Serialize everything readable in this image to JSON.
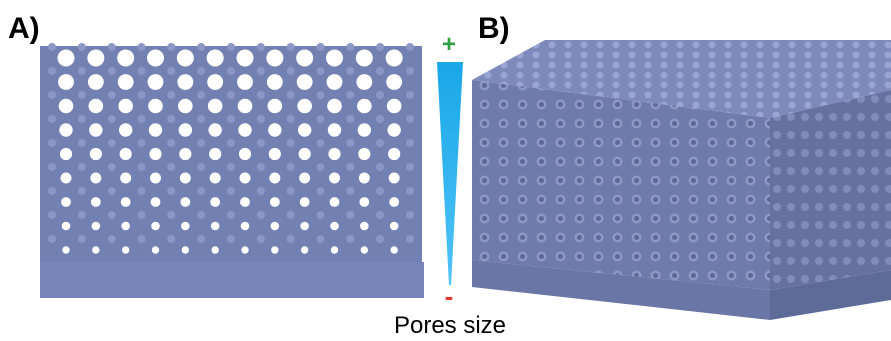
{
  "panel_a": {
    "label": "A)"
  },
  "panel_b": {
    "label": "B)"
  },
  "scale": {
    "max_label": "+",
    "min_label": "-",
    "caption": "Pores size"
  }
}
